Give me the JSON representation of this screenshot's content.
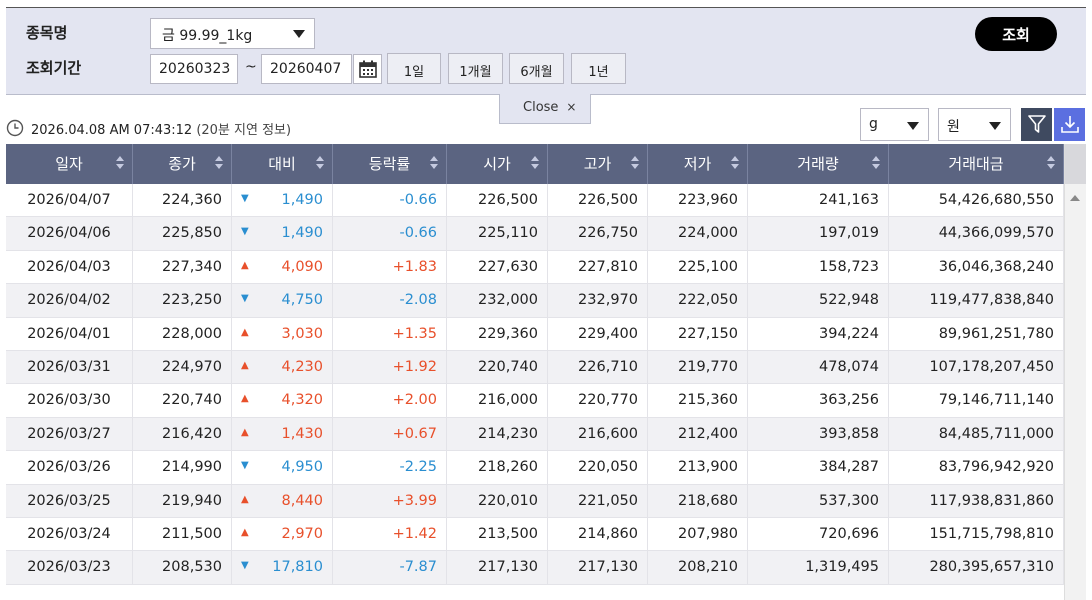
{
  "search": {
    "item_label": "종목명",
    "period_label": "조회기간",
    "item_selected": "금 99.99_1kg",
    "start_date": "20260323",
    "tilde": "~",
    "end_date": "20260407",
    "period_buttons": [
      "1일",
      "1개월",
      "6개월",
      "1년"
    ],
    "query_button": "조회",
    "close_label": "Close",
    "close_x": "×"
  },
  "info": {
    "timestamp": "2026.04.08 AM 07:43:12",
    "delay_note": "(20분 지연 정보)",
    "unit_weight": "g",
    "unit_currency": "원"
  },
  "table": {
    "columns": [
      "일자",
      "종가",
      "대비",
      "등락률",
      "시가",
      "고가",
      "저가",
      "거래량",
      "거래대금"
    ],
    "rows": [
      {
        "date": "2026/04/07",
        "close": "224,360",
        "dir": "down",
        "change": "1,490",
        "rate": "-0.66",
        "open": "226,500",
        "high": "226,500",
        "low": "223,960",
        "volume": "241,163",
        "value": "54,426,680,550"
      },
      {
        "date": "2026/04/06",
        "close": "225,850",
        "dir": "down",
        "change": "1,490",
        "rate": "-0.66",
        "open": "225,110",
        "high": "226,750",
        "low": "224,000",
        "volume": "197,019",
        "value": "44,366,099,570"
      },
      {
        "date": "2026/04/03",
        "close": "227,340",
        "dir": "up",
        "change": "4,090",
        "rate": "+1.83",
        "open": "227,630",
        "high": "227,810",
        "low": "225,100",
        "volume": "158,723",
        "value": "36,046,368,240"
      },
      {
        "date": "2026/04/02",
        "close": "223,250",
        "dir": "down",
        "change": "4,750",
        "rate": "-2.08",
        "open": "232,000",
        "high": "232,970",
        "low": "222,050",
        "volume": "522,948",
        "value": "119,477,838,840"
      },
      {
        "date": "2026/04/01",
        "close": "228,000",
        "dir": "up",
        "change": "3,030",
        "rate": "+1.35",
        "open": "229,360",
        "high": "229,400",
        "low": "227,150",
        "volume": "394,224",
        "value": "89,961,251,780"
      },
      {
        "date": "2026/03/31",
        "close": "224,970",
        "dir": "up",
        "change": "4,230",
        "rate": "+1.92",
        "open": "220,740",
        "high": "226,710",
        "low": "219,770",
        "volume": "478,074",
        "value": "107,178,207,450"
      },
      {
        "date": "2026/03/30",
        "close": "220,740",
        "dir": "up",
        "change": "4,320",
        "rate": "+2.00",
        "open": "216,000",
        "high": "220,770",
        "low": "215,360",
        "volume": "363,256",
        "value": "79,146,711,140"
      },
      {
        "date": "2026/03/27",
        "close": "216,420",
        "dir": "up",
        "change": "1,430",
        "rate": "+0.67",
        "open": "214,230",
        "high": "216,600",
        "low": "212,400",
        "volume": "393,858",
        "value": "84,485,711,000"
      },
      {
        "date": "2026/03/26",
        "close": "214,990",
        "dir": "down",
        "change": "4,950",
        "rate": "-2.25",
        "open": "218,260",
        "high": "220,050",
        "low": "213,900",
        "volume": "384,287",
        "value": "83,796,942,920"
      },
      {
        "date": "2026/03/25",
        "close": "219,940",
        "dir": "up",
        "change": "8,440",
        "rate": "+3.99",
        "open": "220,010",
        "high": "221,050",
        "low": "218,680",
        "volume": "537,300",
        "value": "117,938,831,860"
      },
      {
        "date": "2026/03/24",
        "close": "211,500",
        "dir": "up",
        "change": "2,970",
        "rate": "+1.42",
        "open": "213,500",
        "high": "214,860",
        "low": "207,980",
        "volume": "720,696",
        "value": "151,715,798,810"
      },
      {
        "date": "2026/03/23",
        "close": "208,530",
        "dir": "down",
        "change": "17,810",
        "rate": "-7.87",
        "open": "217,130",
        "high": "217,130",
        "low": "208,210",
        "volume": "1,319,495",
        "value": "280,395,657,310"
      }
    ]
  },
  "icons": {
    "calendar": "calendar-icon",
    "clock": "clock-icon",
    "filter": "filter-icon",
    "download": "download-icon",
    "up_arrow": "▲",
    "down_arrow": "▼"
  },
  "colors": {
    "up": "#e8502b",
    "down": "#2a8ed0",
    "header_bg": "#5b6481",
    "query_bg": "#000000",
    "download_bg": "#5b6fe0"
  }
}
